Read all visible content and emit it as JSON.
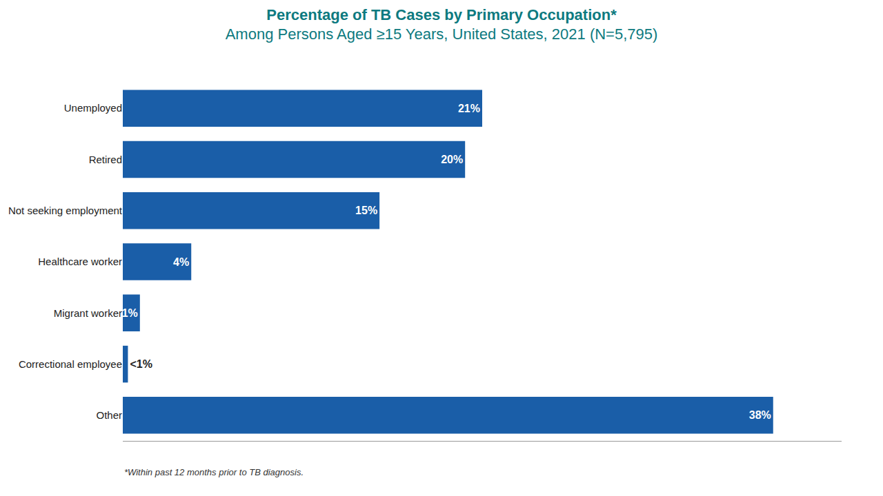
{
  "chart_data": {
    "type": "bar",
    "orientation": "horizontal",
    "title": "Percentage of TB Cases by Primary Occupation*",
    "subtitle": "Among Persons Aged ≥15 Years, United States, 2021 (N=5,795)",
    "categories": [
      "Unemployed",
      "Retired",
      "Not seeking employment",
      "Healthcare worker",
      "Migrant worker",
      "Correctional employee",
      "Other"
    ],
    "values": [
      21,
      20,
      15,
      4,
      1,
      0.3,
      38
    ],
    "value_labels": [
      "21%",
      "20%",
      "15%",
      "4%",
      "1%",
      "<1%",
      "38%"
    ],
    "data_labels": true,
    "color": "#1a5ea8",
    "xlim": [
      0,
      42
    ],
    "tick_labels": "y",
    "grid": false,
    "annotations": [
      "*Within past 12 months prior to TB diagnosis."
    ]
  }
}
